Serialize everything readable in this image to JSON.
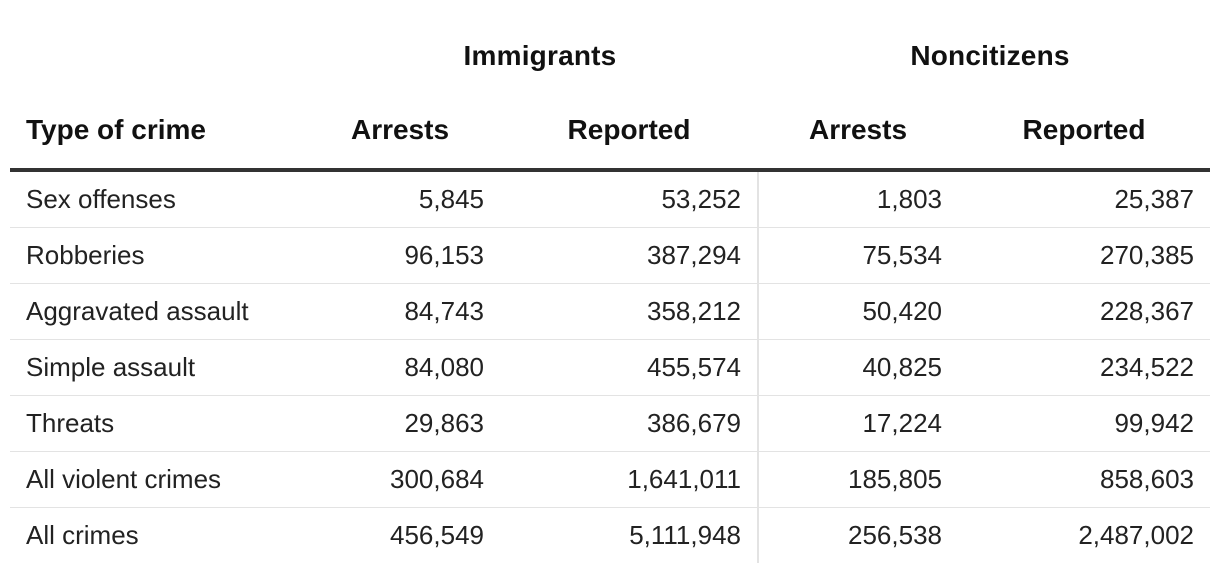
{
  "chart_data": {
    "type": "table",
    "group_headers": [
      "Immigrants",
      "Noncitizens"
    ],
    "columns": [
      "Type of crime",
      "Arrests",
      "Reported",
      "Arrests",
      "Reported"
    ],
    "rows": [
      {
        "type": "Sex offenses",
        "values": [
          "5,845",
          "53,252",
          "1,803",
          "25,387"
        ]
      },
      {
        "type": "Robberies",
        "values": [
          "96,153",
          "387,294",
          "75,534",
          "270,385"
        ]
      },
      {
        "type": "Aggravated assault",
        "values": [
          "84,743",
          "358,212",
          "50,420",
          "228,367"
        ]
      },
      {
        "type": "Simple assault",
        "values": [
          "84,080",
          "455,574",
          "40,825",
          "234,522"
        ]
      },
      {
        "type": "Threats",
        "values": [
          "29,863",
          "386,679",
          "17,224",
          "99,942"
        ]
      },
      {
        "type": "All violent crimes",
        "values": [
          "300,684",
          "1,641,011",
          "185,805",
          "858,603"
        ]
      },
      {
        "type": "All crimes",
        "values": [
          "456,549",
          "5,111,948",
          "256,538",
          "2,487,002"
        ]
      }
    ]
  }
}
